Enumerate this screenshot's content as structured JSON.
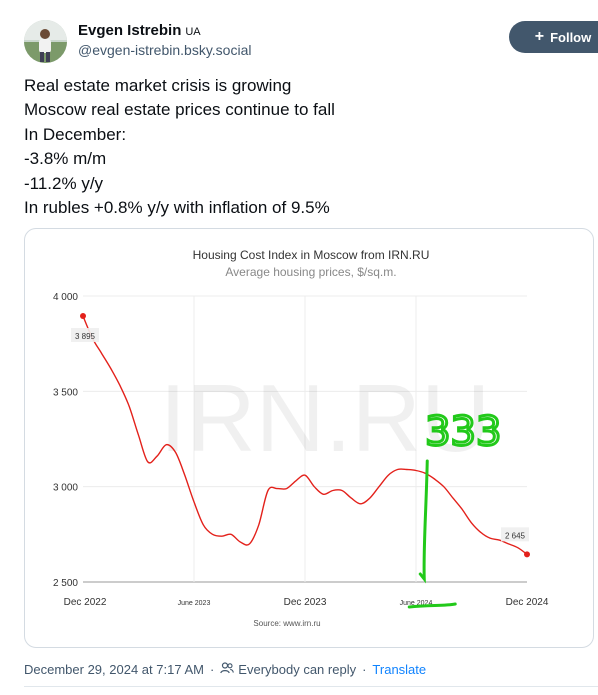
{
  "post": {
    "author_name": "Evgen Istrebin",
    "author_flag": "UA",
    "author_handle": "@evgen-istrebin.bsky.social",
    "follow_label": "Follow",
    "text_lines": [
      "Real estate market crisis is growing",
      "Moscow real estate prices continue to fall",
      "In December:",
      "-3.8% m/m",
      "-11.2% y/y",
      "In rubles +0.8% y/y with inflation of 9.5%"
    ],
    "timestamp": "December 29, 2024 at 7:17 AM",
    "reply_setting": "Everybody can reply",
    "translate_label": "Translate"
  },
  "chart_data": {
    "type": "line",
    "title": "Housing Cost Index in Moscow from IRN.RU",
    "subtitle": "Average housing prices, $/sq.m.",
    "source": "Source: www.irn.ru",
    "watermark": "IRN.RU",
    "annotation": "333",
    "line_color": "#e3211b",
    "annotation_color": "#22c91a",
    "x_tick_labels": [
      "Dec 2022",
      "June 2023",
      "Dec 2023",
      "June 2024",
      "Dec 2024"
    ],
    "y_tick_labels": [
      "4 000",
      "3 500",
      "3 000",
      "2 500"
    ],
    "y_ticks": [
      4000,
      3500,
      3000,
      2500
    ],
    "ylim": [
      2500,
      4000
    ],
    "xlim": [
      0,
      24
    ],
    "grid": true,
    "start_label": "3 895",
    "end_label": "2 645",
    "series": [
      {
        "x": [
          0,
          0.5,
          1,
          1.5,
          2,
          2.5,
          3,
          3.5,
          4,
          4.5,
          5,
          5.5,
          6,
          6.5,
          7,
          7.5,
          8,
          8.5,
          9,
          9.5,
          10,
          10.5,
          11,
          11.5,
          12,
          12.5,
          13,
          13.5,
          14,
          14.5,
          15,
          15.5,
          16,
          16.5,
          17,
          17.5,
          18,
          18.5,
          19,
          19.5,
          20,
          20.5,
          21,
          21.5,
          22,
          22.5,
          23,
          23.5,
          24
        ],
        "values": [
          3895,
          3780,
          3700,
          3620,
          3530,
          3420,
          3270,
          3130,
          3160,
          3220,
          3180,
          3060,
          2920,
          2800,
          2750,
          2740,
          2750,
          2710,
          2700,
          2800,
          2980,
          2990,
          2990,
          3030,
          3060,
          3000,
          2960,
          2980,
          2980,
          2940,
          2910,
          2940,
          3000,
          3060,
          3090,
          3090,
          3085,
          3070,
          3040,
          3000,
          2940,
          2880,
          2810,
          2760,
          2730,
          2720,
          2700,
          2680,
          2645
        ]
      }
    ]
  }
}
